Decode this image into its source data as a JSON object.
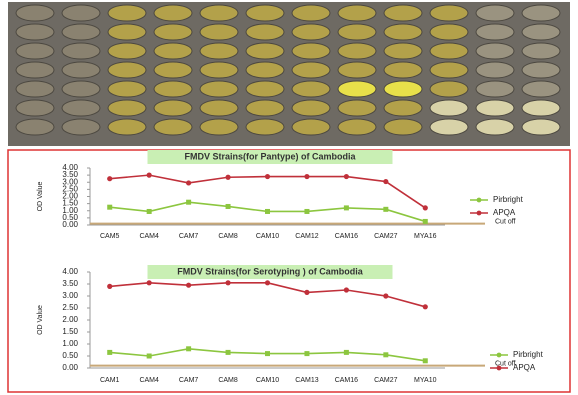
{
  "chart_data": [
    {
      "type": "line",
      "title": "FMDV Strains(for Pantype) of Cambodia",
      "y_label": "OD Value",
      "categories": [
        "CAM5",
        "CAM4",
        "CAM7",
        "CAM8",
        "CAM10",
        "CAM12",
        "CAM16",
        "CAM27",
        "MYA16"
      ],
      "series": [
        {
          "name": "Pirbright",
          "color": "#8cc63f",
          "values": [
            1.25,
            0.95,
            1.6,
            1.3,
            0.95,
            0.95,
            1.2,
            1.1,
            0.25
          ]
        },
        {
          "name": "APQA",
          "color": "#c0303a",
          "values": [
            3.25,
            3.5,
            2.95,
            3.35,
            3.4,
            3.4,
            3.4,
            3.05,
            1.2
          ]
        }
      ],
      "cutoff": {
        "label": "Cut off",
        "value": 0.1
      },
      "ylim": [
        0,
        4
      ],
      "yticks": [
        {
          "value": 0,
          "label": "0.00"
        },
        {
          "value": 0.5,
          "label": "0.50"
        },
        {
          "value": 1,
          "label": "1.00"
        },
        {
          "value": 1.5,
          "label": "1.50"
        },
        {
          "value": 2,
          "label": "2.00"
        },
        {
          "value": 2.5,
          "label": "2.50"
        },
        {
          "value": 3,
          "label": "3.00"
        },
        {
          "value": 3.5,
          "label": "3.50"
        },
        {
          "value": 4,
          "label": "4.00"
        }
      ],
      "legend": "right"
    },
    {
      "type": "line",
      "title": "FMDV Strains(for Serotyping ) of Cambodia",
      "y_label": "OD Value",
      "categories": [
        "CAM1",
        "CAM4",
        "CAM7",
        "CAM8",
        "CAM10",
        "CAM13",
        "CAM16",
        "CAM27",
        "MYA10"
      ],
      "series": [
        {
          "name": "Pirbright",
          "color": "#8cc63f",
          "values": [
            0.65,
            0.5,
            0.8,
            0.65,
            0.6,
            0.6,
            0.65,
            0.55,
            0.3
          ]
        },
        {
          "name": "APQA",
          "color": "#c0303a",
          "values": [
            3.4,
            3.55,
            3.45,
            3.55,
            3.55,
            3.15,
            3.25,
            3.0,
            2.55
          ]
        }
      ],
      "cutoff": {
        "label": "Cut off",
        "value": 0.1
      },
      "ylim": [
        0,
        4
      ],
      "yticks": [
        {
          "value": 0,
          "label": "0.00"
        },
        {
          "value": 0.5,
          "label": "0.50"
        },
        {
          "value": 1,
          "label": "1.00"
        },
        {
          "value": 1.5,
          "label": "1.50"
        },
        {
          "value": 2,
          "label": "2.00"
        },
        {
          "value": 2.5,
          "label": "2.50"
        },
        {
          "value": 3,
          "label": "3.00"
        },
        {
          "value": 3.5,
          "label": "3.50"
        },
        {
          "value": 4,
          "label": "4.00"
        }
      ],
      "legend": "right"
    }
  ]
}
